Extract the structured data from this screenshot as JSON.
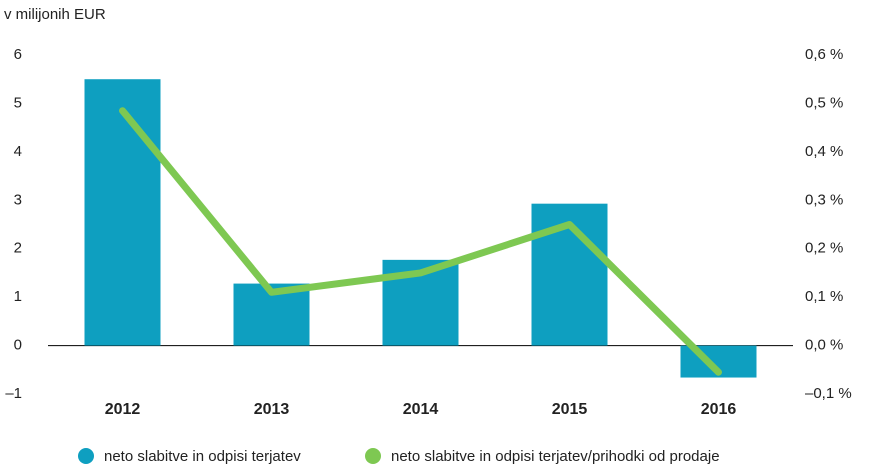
{
  "chart_data": {
    "type": "bar_line",
    "y_axis_label": "v milijonih EUR",
    "categories": [
      "2012",
      "2013",
      "2014",
      "2015",
      "2016"
    ],
    "series": [
      {
        "name": "neto slabitve in odpisi terjatev",
        "color": "#0e9fc0",
        "type": "bar",
        "values": [
          5.5,
          1.28,
          1.77,
          2.93,
          -0.66
        ]
      },
      {
        "name": "neto slabitve in odpisi terjatev/prihodki od prodaje",
        "color": "#7ec852",
        "type": "line",
        "axis": "y2",
        "values": [
          0.485,
          0.11,
          0.15,
          0.25,
          -0.055
        ]
      }
    ],
    "ylim": [
      -1,
      6
    ],
    "yticks": [
      {
        "value": -1,
        "label": "–1"
      },
      0,
      1,
      2,
      3,
      4,
      5,
      6
    ],
    "y2lim": [
      -0.1,
      0.6
    ],
    "y2ticks": [
      {
        "value": -0.1,
        "label": "–0,1 %"
      },
      {
        "value": 0,
        "label": "0,0 %"
      },
      {
        "value": 0.1,
        "label": "0,1 %"
      },
      {
        "value": 0.2,
        "label": "0,2 %"
      },
      {
        "value": 0.3,
        "label": "0,3 %"
      },
      {
        "value": 0.4,
        "label": "0,4 %"
      },
      {
        "value": 0.5,
        "label": "0,5 %"
      },
      {
        "value": 0.6,
        "label": "0,6 %"
      }
    ],
    "grid": false,
    "legend": "bottom"
  }
}
